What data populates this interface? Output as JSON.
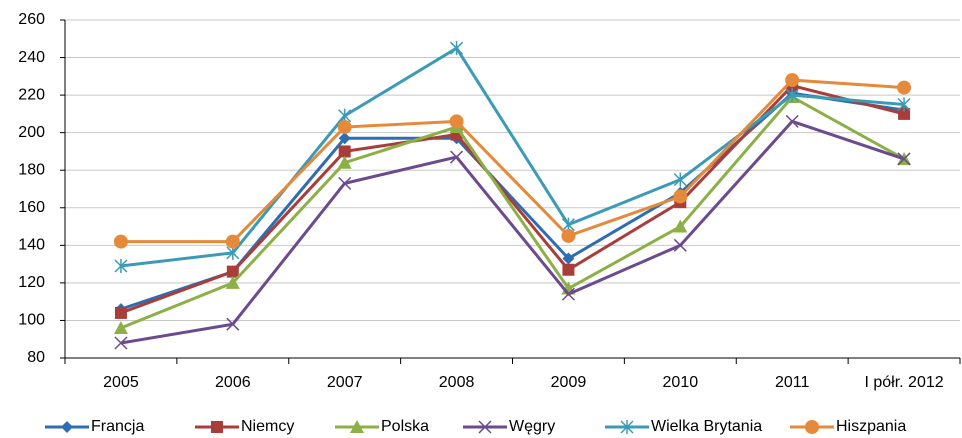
{
  "chart_data": {
    "type": "line",
    "categories": [
      "2005",
      "2006",
      "2007",
      "2008",
      "2009",
      "2010",
      "2011",
      "I półr. 2012"
    ],
    "series": [
      {
        "name": "Francja",
        "color": "#2f6db3",
        "marker": "diamond",
        "values": [
          106,
          126,
          197,
          197,
          133,
          168,
          221,
          212
        ]
      },
      {
        "name": "Niemcy",
        "color": "#a93d3a",
        "marker": "square",
        "values": [
          104,
          126,
          190,
          199,
          127,
          163,
          225,
          210
        ]
      },
      {
        "name": "Polska",
        "color": "#8bb046",
        "marker": "triangle",
        "values": [
          96,
          120,
          184,
          203,
          117,
          150,
          219,
          186
        ]
      },
      {
        "name": "Węgry",
        "color": "#6b4a8e",
        "marker": "x",
        "values": [
          88,
          98,
          173,
          187,
          114,
          140,
          206,
          186
        ]
      },
      {
        "name": "Wielka Brytania",
        "color": "#3b9bb7",
        "marker": "star",
        "values": [
          129,
          136,
          209,
          245,
          151,
          175,
          220,
          215
        ]
      },
      {
        "name": "Hiszpania",
        "color": "#e5893b",
        "marker": "circle",
        "values": [
          142,
          142,
          203,
          206,
          145,
          166,
          228,
          224
        ]
      }
    ],
    "ylim": [
      80,
      260
    ],
    "yticks": [
      80,
      100,
      120,
      140,
      160,
      180,
      200,
      220,
      240,
      260
    ],
    "grid": true,
    "legend": "bottom"
  }
}
